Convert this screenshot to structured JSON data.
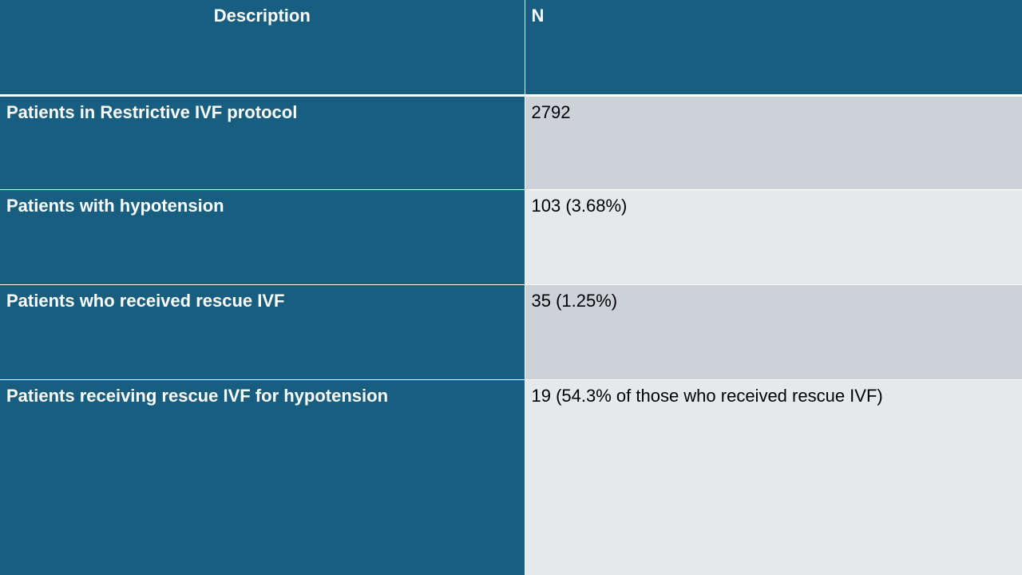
{
  "table": {
    "headers": {
      "description": "Description",
      "n": "N"
    },
    "rows": [
      {
        "description": "Patients in Restrictive IVF protocol",
        "n": "2792"
      },
      {
        "description": "Patients with hypotension",
        "n": "103 (3.68%)"
      },
      {
        "description": "Patients who received rescue IVF",
        "n": "35 (1.25%)"
      },
      {
        "description": "Patients receiving rescue IVF for hypotension",
        "n": "19 (54.3% of those who received rescue IVF)"
      }
    ]
  },
  "colors": {
    "header_fill": "#175e80",
    "header_text": "#ffffff",
    "row_band_dark": "#cdd1d8",
    "row_band_light": "#e6e9ec",
    "value_text": "#000000"
  }
}
